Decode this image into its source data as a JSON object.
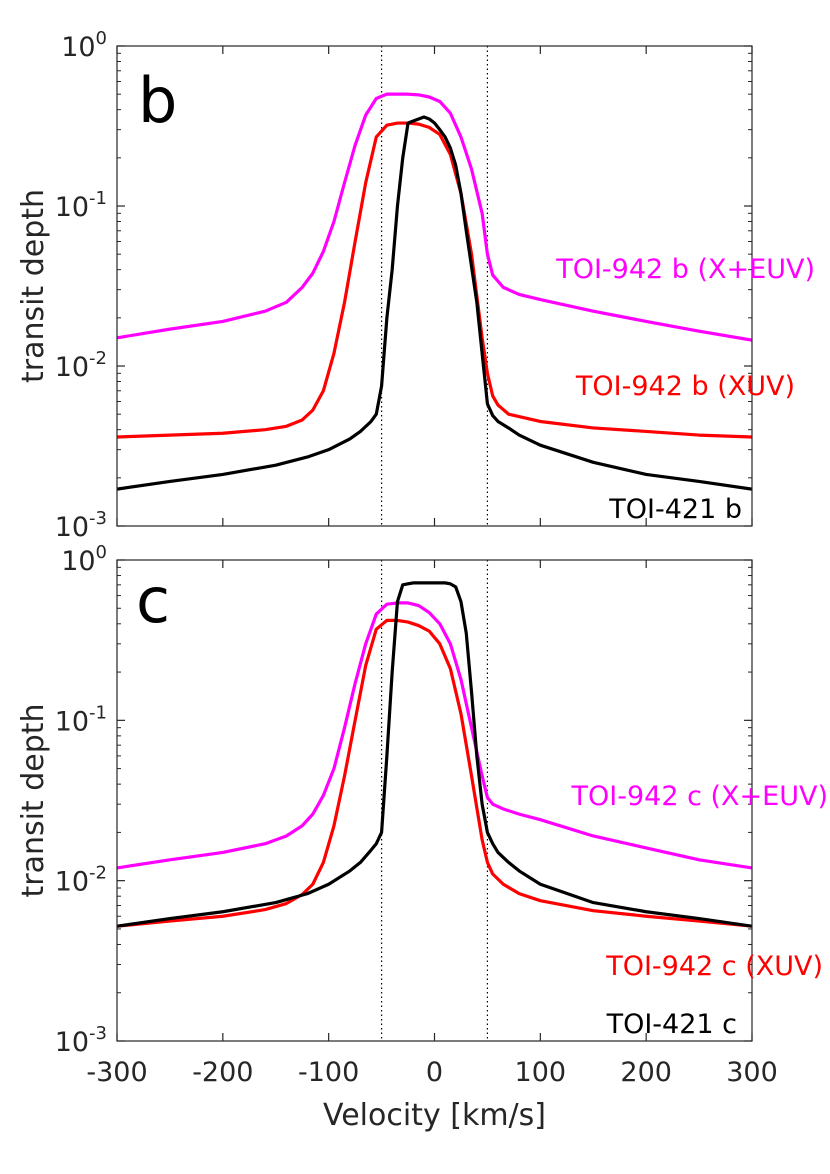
{
  "chart_data": [
    {
      "type": "line",
      "panel_label": "b",
      "xlabel": "",
      "ylabel": "transit depth",
      "xlim": [
        -300,
        300
      ],
      "ylim": [
        0.001,
        1
      ],
      "yscale": "log",
      "xticks": [],
      "yticks": [
        {
          "base": "10",
          "exp": "-3",
          "value": 0.001
        },
        {
          "base": "10",
          "exp": "-2",
          "value": 0.01
        },
        {
          "base": "10",
          "exp": "-1",
          "value": 0.1
        },
        {
          "base": "10",
          "exp": "0",
          "value": 1
        }
      ],
      "grid": false,
      "vlines": [
        -50,
        50
      ],
      "series": [
        {
          "name": "TOI-942 b (X+EUV)",
          "color": "#ff00ff",
          "x": [
            -300,
            -250,
            -200,
            -160,
            -140,
            -125,
            -115,
            -105,
            -95,
            -85,
            -75,
            -65,
            -55,
            -45,
            -35,
            -25,
            -15,
            -5,
            5,
            15,
            25,
            35,
            45,
            50,
            55,
            65,
            80,
            100,
            150,
            200,
            250,
            300
          ],
          "y": [
            0.015,
            0.017,
            0.019,
            0.022,
            0.025,
            0.031,
            0.038,
            0.052,
            0.08,
            0.14,
            0.24,
            0.37,
            0.47,
            0.5,
            0.5,
            0.5,
            0.495,
            0.48,
            0.45,
            0.38,
            0.27,
            0.17,
            0.09,
            0.05,
            0.037,
            0.031,
            0.028,
            0.026,
            0.022,
            0.019,
            0.0165,
            0.0145
          ]
        },
        {
          "name": "TOI-942 b (XUV)",
          "color": "#ff0000",
          "x": [
            -300,
            -250,
            -200,
            -160,
            -140,
            -125,
            -115,
            -105,
            -95,
            -85,
            -75,
            -65,
            -55,
            -45,
            -35,
            -25,
            -15,
            -5,
            5,
            15,
            25,
            35,
            45,
            50,
            55,
            60,
            70,
            100,
            150,
            200,
            250,
            300
          ],
          "y": [
            0.0036,
            0.0037,
            0.0038,
            0.004,
            0.0042,
            0.0046,
            0.0053,
            0.007,
            0.012,
            0.025,
            0.06,
            0.14,
            0.27,
            0.32,
            0.33,
            0.33,
            0.325,
            0.31,
            0.28,
            0.21,
            0.12,
            0.05,
            0.015,
            0.009,
            0.0065,
            0.0057,
            0.005,
            0.0045,
            0.0041,
            0.0039,
            0.0037,
            0.0036
          ]
        },
        {
          "name": "TOI-421 b",
          "color": "#000000",
          "x": [
            -300,
            -250,
            -200,
            -150,
            -120,
            -100,
            -80,
            -70,
            -60,
            -55,
            -50,
            -45,
            -40,
            -35,
            -30,
            -25,
            -15,
            -10,
            -5,
            0,
            5,
            10,
            15,
            20,
            25,
            30,
            40,
            45,
            50,
            55,
            60,
            70,
            80,
            100,
            150,
            200,
            250,
            300
          ],
          "y": [
            0.0017,
            0.0019,
            0.0021,
            0.0024,
            0.0027,
            0.003,
            0.0035,
            0.0039,
            0.0045,
            0.005,
            0.0075,
            0.02,
            0.04,
            0.1,
            0.2,
            0.33,
            0.35,
            0.36,
            0.35,
            0.33,
            0.3,
            0.27,
            0.23,
            0.18,
            0.12,
            0.07,
            0.025,
            0.012,
            0.0058,
            0.0049,
            0.0045,
            0.0041,
            0.0037,
            0.0032,
            0.0025,
            0.0021,
            0.0019,
            0.0017
          ]
        }
      ],
      "annotations": [
        {
          "text": "TOI-942 b (X+EUV)",
          "color": "#ff00ff"
        },
        {
          "text": "TOI-942 b (XUV)",
          "color": "#ff0000"
        },
        {
          "text": "TOI-421 b",
          "color": "#000000"
        }
      ]
    },
    {
      "type": "line",
      "panel_label": "c",
      "xlabel": "Velocity [km/s]",
      "ylabel": "transit depth",
      "xlim": [
        -300,
        300
      ],
      "ylim": [
        0.001,
        1
      ],
      "yscale": "log",
      "xticks": [
        "-300",
        "-200",
        "-100",
        "0",
        "100",
        "200",
        "300"
      ],
      "yticks": [
        {
          "base": "10",
          "exp": "-3",
          "value": 0.001
        },
        {
          "base": "10",
          "exp": "-2",
          "value": 0.01
        },
        {
          "base": "10",
          "exp": "-1",
          "value": 0.1
        },
        {
          "base": "10",
          "exp": "0",
          "value": 1
        }
      ],
      "grid": false,
      "vlines": [
        -50,
        50
      ],
      "series": [
        {
          "name": "TOI-942 c (X+EUV)",
          "color": "#ff00ff",
          "x": [
            -300,
            -250,
            -200,
            -160,
            -140,
            -125,
            -115,
            -105,
            -95,
            -85,
            -75,
            -65,
            -55,
            -45,
            -35,
            -25,
            -15,
            -5,
            5,
            15,
            25,
            35,
            45,
            50,
            55,
            65,
            80,
            100,
            150,
            200,
            250,
            300
          ],
          "y": [
            0.012,
            0.0135,
            0.015,
            0.017,
            0.019,
            0.022,
            0.026,
            0.034,
            0.05,
            0.09,
            0.17,
            0.3,
            0.46,
            0.53,
            0.54,
            0.54,
            0.52,
            0.47,
            0.4,
            0.3,
            0.18,
            0.09,
            0.045,
            0.033,
            0.03,
            0.028,
            0.026,
            0.024,
            0.019,
            0.016,
            0.0135,
            0.012
          ]
        },
        {
          "name": "TOI-942 c (XUV)",
          "color": "#ff0000",
          "x": [
            -300,
            -250,
            -200,
            -160,
            -140,
            -125,
            -115,
            -105,
            -95,
            -85,
            -75,
            -65,
            -55,
            -45,
            -35,
            -25,
            -15,
            -5,
            5,
            15,
            25,
            35,
            45,
            50,
            55,
            65,
            80,
            100,
            150,
            200,
            250,
            300
          ],
          "y": [
            0.0052,
            0.0056,
            0.006,
            0.0066,
            0.0072,
            0.0082,
            0.0095,
            0.013,
            0.022,
            0.045,
            0.1,
            0.22,
            0.37,
            0.42,
            0.42,
            0.41,
            0.39,
            0.36,
            0.3,
            0.21,
            0.11,
            0.045,
            0.018,
            0.013,
            0.011,
            0.0095,
            0.0083,
            0.0075,
            0.0065,
            0.006,
            0.0056,
            0.0052
          ]
        },
        {
          "name": "TOI-421 c",
          "color": "#000000",
          "x": [
            -300,
            -250,
            -200,
            -150,
            -120,
            -100,
            -80,
            -70,
            -60,
            -55,
            -50,
            -45,
            -40,
            -35,
            -30,
            -25,
            -20,
            -10,
            0,
            10,
            15,
            20,
            25,
            30,
            35,
            40,
            45,
            50,
            55,
            60,
            70,
            80,
            100,
            150,
            200,
            250,
            300
          ],
          "y": [
            0.0052,
            0.0058,
            0.0064,
            0.0073,
            0.0083,
            0.0095,
            0.0115,
            0.013,
            0.0155,
            0.017,
            0.02,
            0.06,
            0.2,
            0.55,
            0.7,
            0.71,
            0.72,
            0.72,
            0.72,
            0.72,
            0.71,
            0.68,
            0.55,
            0.35,
            0.15,
            0.06,
            0.03,
            0.02,
            0.017,
            0.015,
            0.013,
            0.0115,
            0.0095,
            0.0073,
            0.0064,
            0.0058,
            0.0052
          ]
        }
      ],
      "annotations": [
        {
          "text": "TOI-942 c (X+EUV)",
          "color": "#ff00ff"
        },
        {
          "text": "TOI-942 c (XUV)",
          "color": "#ff0000"
        },
        {
          "text": "TOI-421 c",
          "color": "#000000"
        }
      ]
    }
  ]
}
